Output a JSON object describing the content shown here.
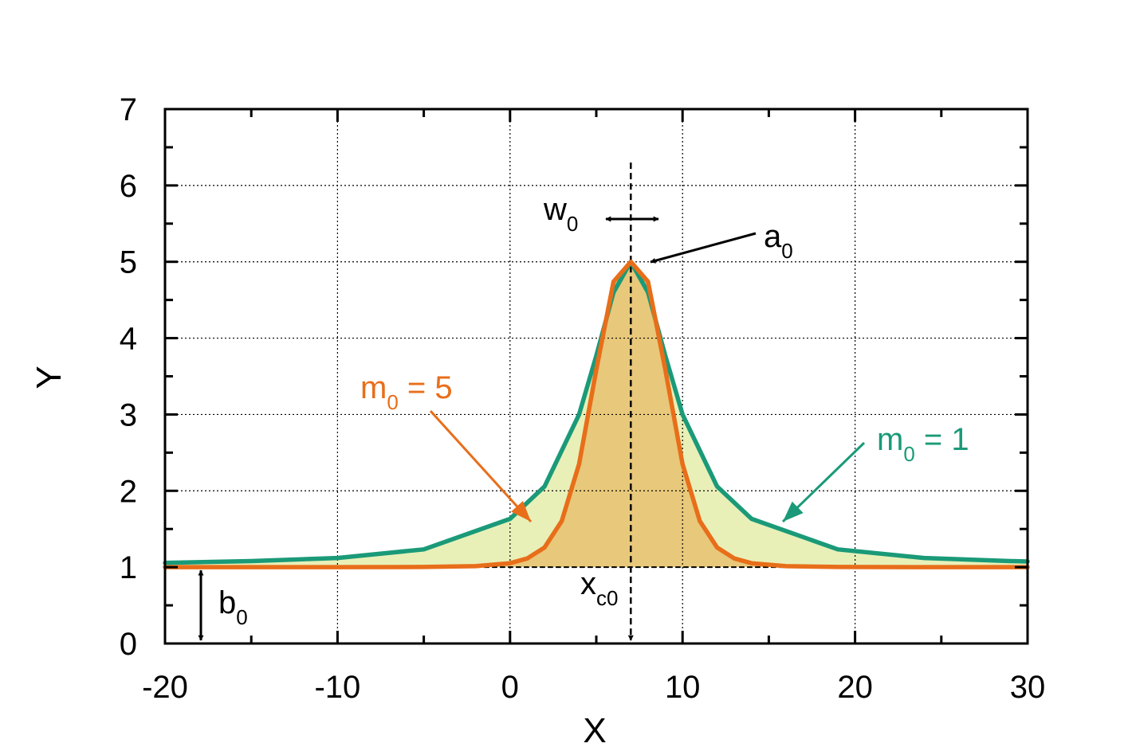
{
  "chart_data": {
    "type": "line",
    "xlabel": "X",
    "ylabel": "Y",
    "xlim": [
      -20,
      30
    ],
    "ylim": [
      0,
      7
    ],
    "xticks": [
      -20,
      -10,
      0,
      10,
      20,
      30
    ],
    "yticks": [
      0,
      1,
      2,
      3,
      4,
      5,
      6,
      7
    ],
    "grid": true,
    "parameters": {
      "a0": 5,
      "b0": 1,
      "xc0": 7,
      "w0": 3
    },
    "series": [
      {
        "name": "m0 = 1",
        "color": "#1a9a78",
        "fill": "#e8f0b8",
        "x": [
          -20,
          -15,
          -10,
          -5,
          0,
          2,
          4,
          5,
          6,
          7,
          8,
          9,
          10,
          12,
          14,
          19,
          24,
          29,
          30
        ],
        "y": [
          1.056,
          1.08,
          1.12,
          1.233,
          1.633,
          2.057,
          3.0,
          3.769,
          4.6,
          5.0,
          4.6,
          3.769,
          3.0,
          2.057,
          1.633,
          1.233,
          1.12,
          1.08,
          1.075
        ]
      },
      {
        "name": "m0 = 5",
        "color": "#e86e1a",
        "fill": "#e8c87a",
        "x": [
          -20,
          -10,
          -5,
          -2,
          0,
          1,
          2,
          3,
          4,
          5,
          6,
          7,
          8,
          9,
          10,
          11,
          12,
          13,
          14,
          16,
          19,
          24,
          30
        ],
        "y": [
          1.0,
          1.0,
          1.003,
          1.013,
          1.052,
          1.114,
          1.258,
          1.605,
          2.35,
          3.587,
          4.739,
          5.0,
          4.739,
          3.587,
          2.35,
          1.605,
          1.258,
          1.114,
          1.052,
          1.013,
          1.003,
          1.0,
          1.0
        ]
      }
    ],
    "annotations": {
      "w0": {
        "base": "w",
        "sub": "0"
      },
      "a0": {
        "base": "a",
        "sub": "0"
      },
      "xc0": {
        "base": "x",
        "sub": "c0"
      },
      "b0": {
        "base": "b",
        "sub": "0"
      },
      "m5": {
        "base": "m",
        "sub": "0",
        "rest": " = 5"
      },
      "m1": {
        "base": "m",
        "sub": "0",
        "rest": " = 1"
      }
    }
  }
}
